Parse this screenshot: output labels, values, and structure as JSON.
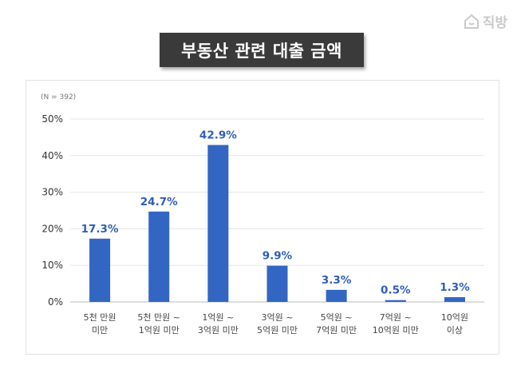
{
  "brand": {
    "name": "직방",
    "icon": "house-logo-icon",
    "color": "#c9c9c9"
  },
  "chart_data": {
    "type": "bar",
    "title": "부동산 관련 대출 금액",
    "note": "(N = 392)",
    "categories": [
      [
        "5천 만원",
        "미만"
      ],
      [
        "5천 만원 ~",
        "1억원 미만"
      ],
      [
        "1억원 ~",
        "3억원 미만"
      ],
      [
        "3억원 ~",
        "5억원 미만"
      ],
      [
        "5억원 ~",
        "7억원 미만"
      ],
      [
        "7억원 ~",
        "10억원 미만"
      ],
      [
        "10억원",
        "이상"
      ]
    ],
    "values": [
      17.3,
      24.7,
      42.9,
      9.9,
      3.3,
      0.5,
      1.3
    ],
    "value_labels": [
      "17.3%",
      "24.7%",
      "42.9%",
      "9.9%",
      "3.3%",
      "0.5%",
      "1.3%"
    ],
    "yticks": [
      "0%",
      "10%",
      "20%",
      "30%",
      "40%",
      "50%"
    ],
    "ylim": [
      0,
      50
    ],
    "grid": true,
    "bar_color": "#3366c2",
    "label_color": "#2f5db9"
  }
}
